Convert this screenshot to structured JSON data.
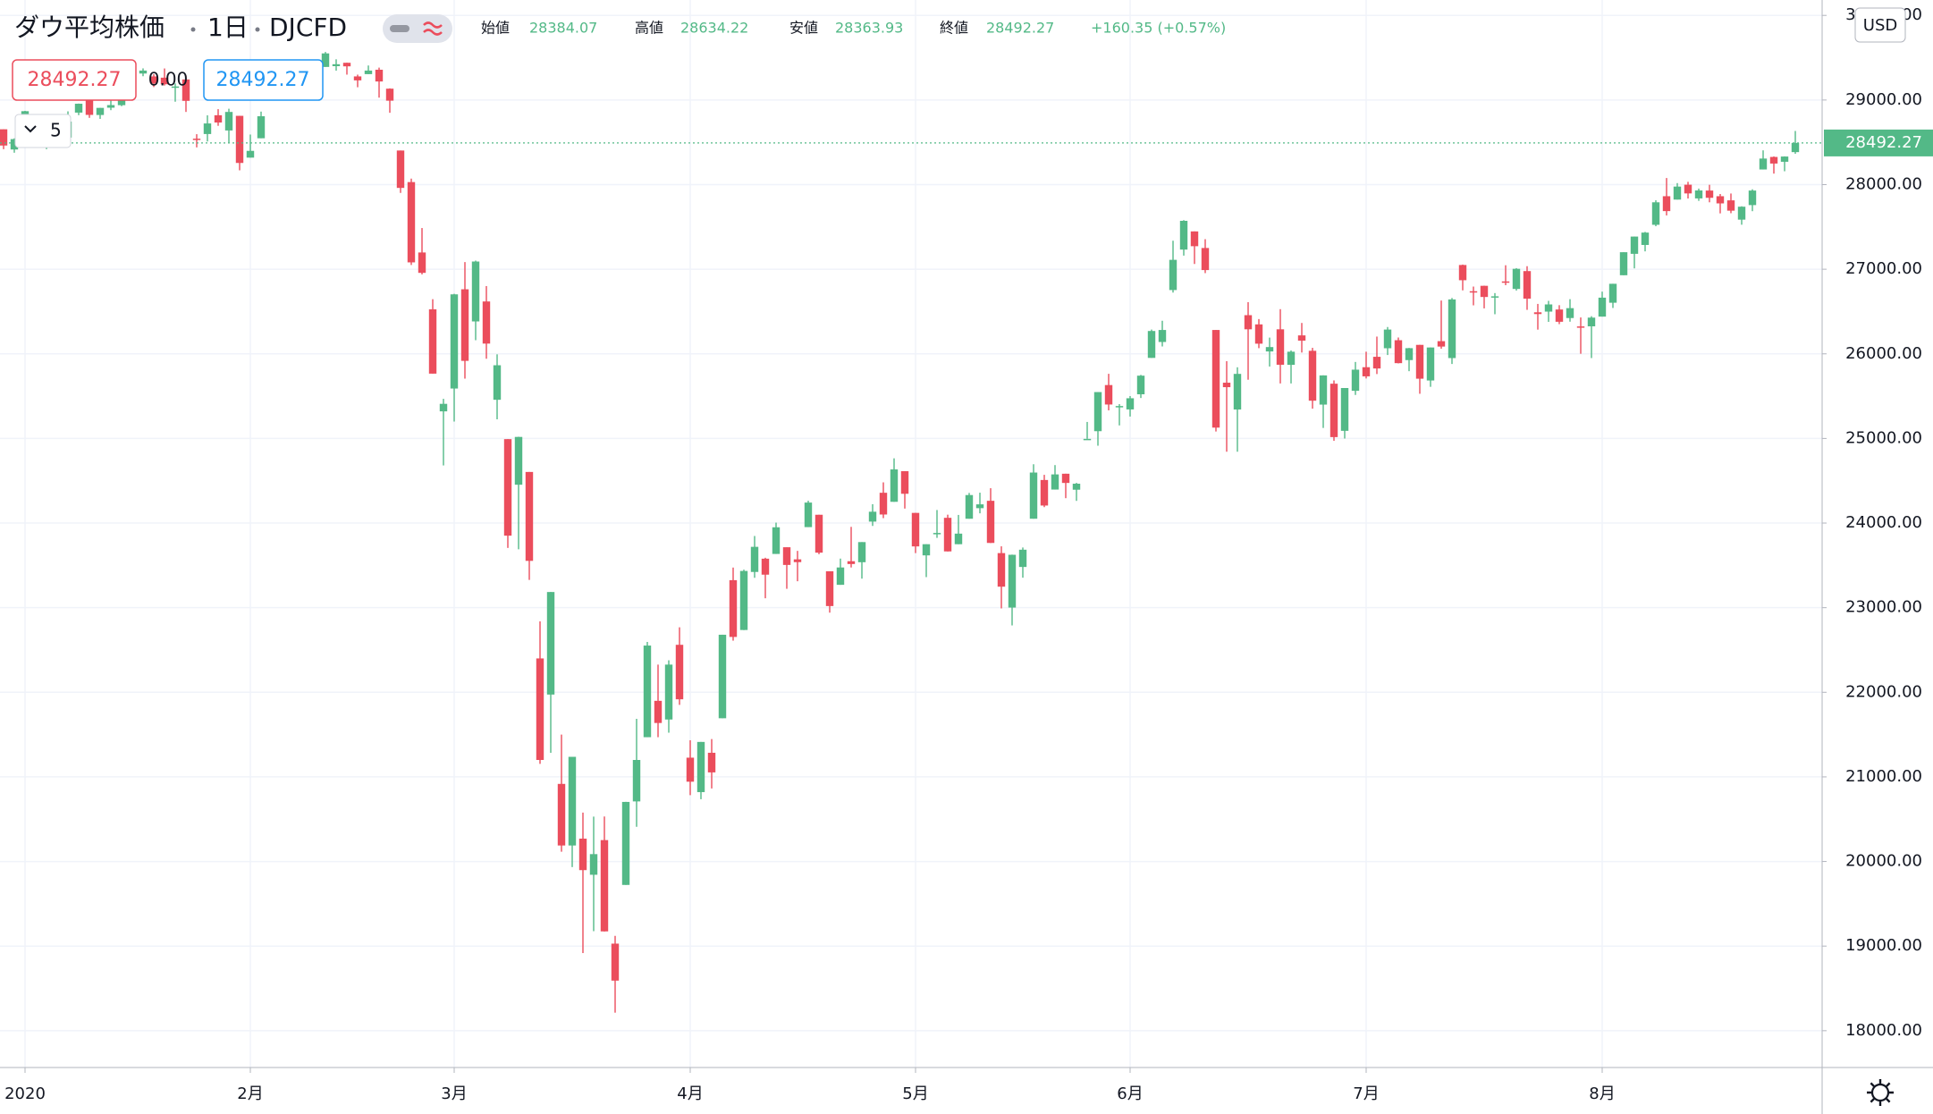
{
  "chart_data": {
    "type": "candlestick",
    "title": "ダウ平均株価",
    "interval": "1日",
    "symbol": "DJCFD",
    "legend": {
      "open_label": "始値",
      "open": 28384.07,
      "high_label": "高値",
      "high": 28634.22,
      "low_label": "安値",
      "low": 28363.93,
      "close_label": "終値",
      "close": 28492.27,
      "change": "+160.35 (+0.57%)"
    },
    "sell_price": 28492.27,
    "spread": "0.00",
    "buy_price": 28492.27,
    "indicator_count": 5,
    "currency": "USD",
    "last_price": 28492.27,
    "up_color": "#53b987",
    "down_color": "#eb4d5c",
    "ylim": [
      17565,
      30182
    ],
    "yticks": [
      {
        "value": 18000,
        "label": "18000.00"
      },
      {
        "value": 19000,
        "label": "19000.00"
      },
      {
        "value": 20000,
        "label": "20000.00"
      },
      {
        "value": 21000,
        "label": "21000.00"
      },
      {
        "value": 22000,
        "label": "22000.00"
      },
      {
        "value": 23000,
        "label": "23000.00"
      },
      {
        "value": 24000,
        "label": "24000.00"
      },
      {
        "value": 25000,
        "label": "25000.00"
      },
      {
        "value": 26000,
        "label": "26000.00"
      },
      {
        "value": 27000,
        "label": "27000.00"
      },
      {
        "value": 28000,
        "label": "28000.00"
      },
      {
        "value": 29000,
        "label": "29000.00"
      },
      {
        "value": 30000,
        "label": "30000.00"
      }
    ],
    "xticks": [
      {
        "value": 2,
        "label": "2020"
      },
      {
        "value": 23,
        "label": "2月"
      },
      {
        "value": 42,
        "label": "3月"
      },
      {
        "value": 64,
        "label": "4月"
      },
      {
        "value": 85,
        "label": "5月"
      },
      {
        "value": 105,
        "label": "6月"
      },
      {
        "value": 127,
        "label": "7月"
      },
      {
        "value": 149,
        "label": "8月"
      }
    ],
    "grid": true,
    "ohlc": [
      [
        28654,
        28654,
        28419,
        28462
      ],
      [
        28415,
        28547,
        28377,
        28538
      ],
      [
        28638,
        28872,
        28627,
        28868
      ],
      [
        28553,
        28716,
        28500,
        28634
      ],
      [
        28466,
        28709,
        28419,
        28703
      ],
      [
        28639,
        28685,
        28565,
        28583
      ],
      [
        28556,
        28866,
        28502,
        28745
      ],
      [
        28851,
        28958,
        28821,
        28956
      ],
      [
        29000,
        29009,
        28789,
        28824
      ],
      [
        28823,
        28907,
        28777,
        28907
      ],
      [
        28909,
        29069,
        28880,
        28940
      ],
      [
        28939,
        29079,
        28927,
        29030
      ],
      [
        29050,
        29298,
        29050,
        29298
      ],
      [
        29313,
        29374,
        29281,
        29348
      ],
      [
        29279,
        29306,
        29153,
        29196
      ],
      [
        29264,
        29373,
        29171,
        29186
      ],
      [
        29145,
        29196,
        28980,
        29160
      ],
      [
        29243,
        29290,
        28859,
        28990
      ],
      [
        28543,
        28596,
        28440,
        28535
      ],
      [
        28598,
        28819,
        28510,
        28723
      ],
      [
        28820,
        28892,
        28695,
        28734
      ],
      [
        28640,
        28897,
        28488,
        28859
      ],
      [
        28813,
        28813,
        28169,
        28256
      ],
      [
        28319,
        28592,
        28319,
        28399
      ],
      [
        28548,
        28863,
        28548,
        28808
      ],
      [
        28994,
        29290,
        28994,
        29290
      ],
      [
        29344,
        29409,
        29254,
        29380
      ],
      [
        29287,
        29287,
        29036,
        29103
      ],
      [
        29085,
        29277,
        29062,
        29276
      ],
      [
        29368,
        29415,
        29246,
        29276
      ],
      [
        29391,
        29568,
        29391,
        29551
      ],
      [
        29400,
        29481,
        29347,
        29423
      ],
      [
        29440,
        29441,
        29300,
        29398
      ],
      [
        29279,
        29300,
        29151,
        29232
      ],
      [
        29306,
        29408,
        29306,
        29348
      ],
      [
        29358,
        29383,
        29028,
        29219
      ],
      [
        29134,
        29138,
        28849,
        28992
      ],
      [
        28403,
        28403,
        27902,
        27961
      ],
      [
        28030,
        28071,
        27050,
        27081
      ],
      [
        27198,
        27487,
        26939,
        26957
      ],
      [
        26526,
        26646,
        25766,
        25766
      ],
      [
        25320,
        25468,
        24681,
        25409
      ],
      [
        25590,
        26710,
        25200,
        26703
      ],
      [
        26763,
        27085,
        25707,
        25917
      ],
      [
        26383,
        27102,
        26161,
        27091
      ],
      [
        26619,
        26801,
        25942,
        26121
      ],
      [
        25457,
        25994,
        25226,
        25865
      ],
      [
        24992,
        24992,
        23706,
        23851
      ],
      [
        24453,
        25020,
        23690,
        25018
      ],
      [
        24604,
        24604,
        23328,
        23553
      ],
      [
        22400,
        22838,
        21154,
        21200
      ],
      [
        21973,
        23185,
        21285,
        23185
      ],
      [
        20917,
        21500,
        20116,
        20189
      ],
      [
        20189,
        21237,
        19934,
        21237
      ],
      [
        20270,
        20578,
        18917,
        19898
      ],
      [
        19843,
        20531,
        19177,
        20087
      ],
      [
        20253,
        20532,
        19173,
        19174
      ],
      [
        19029,
        19121,
        18213,
        18592
      ],
      [
        19723,
        20705,
        19723,
        20704
      ],
      [
        20710,
        21686,
        20410,
        21200
      ],
      [
        21469,
        22595,
        21469,
        22552
      ],
      [
        21899,
        22327,
        21469,
        21637
      ],
      [
        21678,
        22378,
        21522,
        22327
      ],
      [
        22561,
        22768,
        21851,
        21917
      ],
      [
        21227,
        21433,
        20784,
        20943
      ],
      [
        20820,
        21413,
        20736,
        21413
      ],
      [
        21285,
        21447,
        20863,
        21053
      ],
      [
        21693,
        22680,
        21693,
        22680
      ],
      [
        23325,
        23474,
        22610,
        22654
      ],
      [
        22736,
        23449,
        22735,
        23434
      ],
      [
        23422,
        23847,
        23353,
        23719
      ],
      [
        23579,
        23590,
        23111,
        23390
      ],
      [
        23635,
        24005,
        23635,
        23950
      ],
      [
        23714,
        23714,
        23223,
        23505
      ],
      [
        23571,
        23671,
        23312,
        23538
      ],
      [
        23952,
        24264,
        23952,
        24242
      ],
      [
        24098,
        24098,
        23632,
        23650
      ],
      [
        23430,
        23430,
        22941,
        23019
      ],
      [
        23270,
        23580,
        23270,
        23475
      ],
      [
        23549,
        23955,
        23475,
        23516
      ],
      [
        23537,
        23775,
        23343,
        23775
      ],
      [
        24017,
        24223,
        23966,
        24134
      ],
      [
        24358,
        24481,
        24058,
        24101
      ],
      [
        24251,
        24765,
        24251,
        24634
      ],
      [
        24613,
        24613,
        24171,
        24346
      ],
      [
        24120,
        24120,
        23645,
        23724
      ],
      [
        23618,
        23749,
        23361,
        23750
      ],
      [
        23879,
        24154,
        23825,
        23883
      ],
      [
        24062,
        24099,
        23664,
        23665
      ],
      [
        23750,
        24096,
        23750,
        23875
      ],
      [
        24051,
        24356,
        24051,
        24331
      ],
      [
        24176,
        24359,
        24115,
        24221
      ],
      [
        24263,
        24412,
        23764,
        23765
      ],
      [
        23645,
        23725,
        22991,
        23248
      ],
      [
        23001,
        23627,
        22790,
        23625
      ],
      [
        23481,
        23711,
        23354,
        23685
      ],
      [
        24051,
        24695,
        24051,
        24597
      ],
      [
        24509,
        24570,
        24188,
        24207
      ],
      [
        24396,
        24685,
        24396,
        24575
      ],
      [
        24583,
        24583,
        24294,
        24474
      ],
      [
        24394,
        24475,
        24262,
        24465
      ],
      [
        24995,
        25195,
        24995,
        24995
      ],
      [
        25086,
        25548,
        24914,
        25548
      ],
      [
        25631,
        25764,
        25332,
        25401
      ],
      [
        25376,
        25406,
        25154,
        25383
      ],
      [
        25343,
        25501,
        25259,
        25475
      ],
      [
        25522,
        25751,
        25478,
        25742
      ],
      [
        25952,
        26287,
        25952,
        26270
      ],
      [
        26140,
        26391,
        26087,
        26282
      ],
      [
        26754,
        27337,
        26724,
        27111
      ],
      [
        27232,
        27580,
        27161,
        27572
      ],
      [
        27447,
        27447,
        27062,
        27272
      ],
      [
        27251,
        27355,
        26954,
        26990
      ],
      [
        26282,
        26282,
        25082,
        25128
      ],
      [
        25659,
        25913,
        24843,
        25606
      ],
      [
        25342,
        25841,
        24843,
        25763
      ],
      [
        26457,
        26611,
        25694,
        26290
      ],
      [
        26348,
        26411,
        26067,
        26120
      ],
      [
        26028,
        26192,
        25850,
        26080
      ],
      [
        26290,
        26528,
        25650,
        25871
      ],
      [
        25870,
        26040,
        25650,
        26025
      ],
      [
        26218,
        26365,
        26015,
        26156
      ],
      [
        26036,
        26071,
        25352,
        25446
      ],
      [
        25400,
        25746,
        25124,
        25745
      ],
      [
        25647,
        25686,
        24972,
        25016
      ],
      [
        25090,
        25596,
        24999,
        25596
      ],
      [
        25563,
        25904,
        25514,
        25813
      ],
      [
        25842,
        26025,
        25709,
        25734
      ],
      [
        25965,
        26204,
        25761,
        25827
      ],
      [
        26066,
        26317,
        25986,
        26287
      ],
      [
        26161,
        26193,
        25887,
        25890
      ],
      [
        25926,
        26070,
        25795,
        26067
      ],
      [
        26106,
        26106,
        25528,
        25706
      ],
      [
        25685,
        26075,
        25610,
        26075
      ],
      [
        26150,
        26630,
        26060,
        26086
      ],
      [
        25950,
        26660,
        25880,
        26643
      ],
      [
        27050,
        27055,
        26750,
        26870
      ],
      [
        26740,
        26795,
        26573,
        26735
      ],
      [
        26804,
        26806,
        26537,
        26672
      ],
      [
        26677,
        26718,
        26468,
        26680
      ],
      [
        26856,
        27047,
        26811,
        26840
      ],
      [
        26767,
        27013,
        26748,
        27005
      ],
      [
        26978,
        27036,
        26520,
        26652
      ],
      [
        26491,
        26590,
        26286,
        26470
      ],
      [
        26499,
        26626,
        26378,
        26584
      ],
      [
        26524,
        26575,
        26351,
        26379
      ],
      [
        26423,
        26646,
        26380,
        26540
      ],
      [
        26324,
        26430,
        26001,
        26314
      ],
      [
        26325,
        26445,
        25950,
        26428
      ],
      [
        26440,
        26735,
        26440,
        26664
      ],
      [
        26604,
        26828,
        26542,
        26828
      ],
      [
        26929,
        27201,
        26929,
        27201
      ],
      [
        27182,
        27386,
        27010,
        27386
      ],
      [
        27287,
        27441,
        27211,
        27433
      ],
      [
        27525,
        27815,
        27508,
        27791
      ],
      [
        27863,
        28078,
        27636,
        27687
      ],
      [
        27823,
        28018,
        27823,
        27977
      ],
      [
        27999,
        28033,
        27836,
        27896
      ],
      [
        27837,
        27953,
        27808,
        27931
      ],
      [
        27930,
        27998,
        27791,
        27844
      ],
      [
        27863,
        27889,
        27660,
        27778
      ],
      [
        27814,
        27895,
        27662,
        27692
      ],
      [
        27586,
        27744,
        27526,
        27739
      ],
      [
        27758,
        27945,
        27686,
        27930
      ],
      [
        28179,
        28405,
        28179,
        28308
      ],
      [
        28327,
        28333,
        28130,
        28249
      ],
      [
        28270,
        28334,
        28158,
        28332
      ],
      [
        28384.07,
        28634.22,
        28363.93,
        28492.27
      ]
    ]
  }
}
